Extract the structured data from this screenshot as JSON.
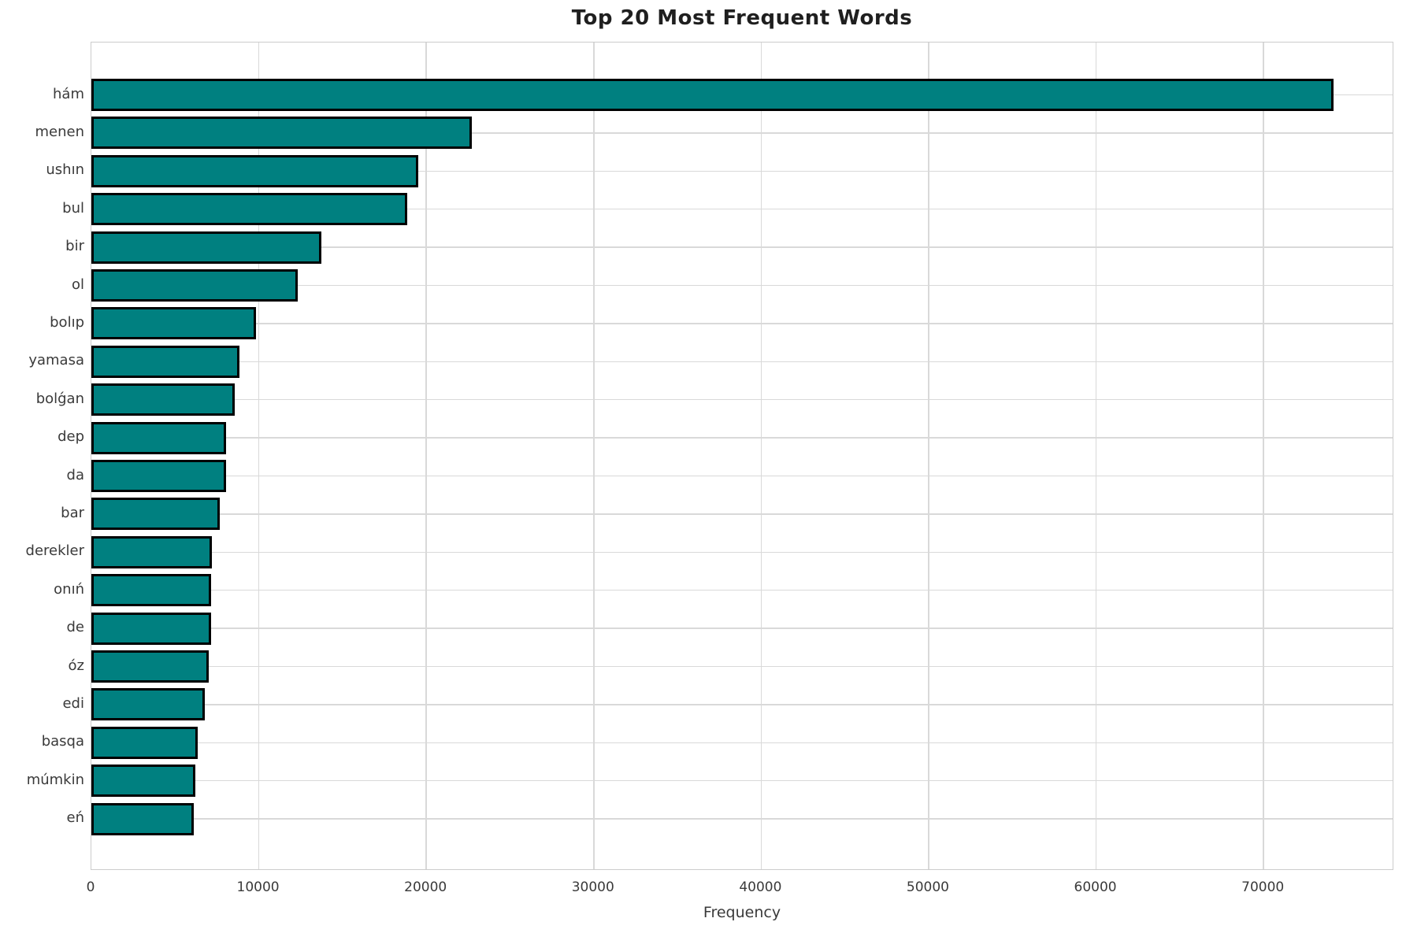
{
  "chart_data": {
    "type": "bar",
    "orientation": "horizontal",
    "title": "Top 20 Most Frequent Words",
    "xlabel": "Frequency",
    "ylabel": "",
    "categories": [
      "hám",
      "menen",
      "ushın",
      "bul",
      "bir",
      "ol",
      "bolıp",
      "yamasa",
      "bolǵan",
      "dep",
      "da",
      "bar",
      "derekler",
      "onıń",
      "de",
      "óz",
      "edi",
      "basqa",
      "múmkin",
      "eń"
    ],
    "values": [
      74200,
      22700,
      19520,
      18880,
      13740,
      12330,
      9820,
      8840,
      8560,
      8060,
      8050,
      7680,
      7210,
      7130,
      7130,
      7010,
      6790,
      6350,
      6210,
      6130
    ],
    "xlim": [
      0,
      77800
    ],
    "xticks": [
      0,
      10000,
      20000,
      30000,
      40000,
      50000,
      60000,
      70000
    ],
    "grid": true,
    "legend": "none",
    "bar_color": "#008080",
    "bar_edge_color": "#000000",
    "grid_color": "#d9d9d9",
    "spine_color": "#cccccc",
    "text_color": "#3a3a3a",
    "background_color": "#ffffff"
  }
}
